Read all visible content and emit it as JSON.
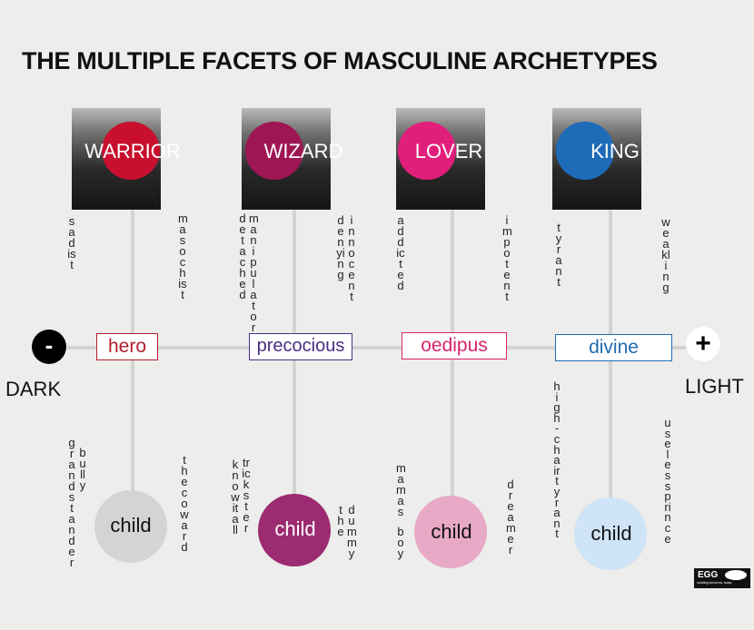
{
  "title": "THE MULTIPLE FACETS OF MASCULINE ARCHETYPES",
  "poles": {
    "dark": {
      "symbol": "-",
      "label": "DARK"
    },
    "light": {
      "symbol": "+",
      "label": "LIGHT"
    }
  },
  "archetypes": [
    {
      "name": "WARRIOR",
      "color": "#c8102e",
      "left_shadow": [
        "sadist"
      ],
      "right_shadow": [
        "masochist"
      ],
      "mature": "hero",
      "mature_color": "#b01e2c",
      "immature": "child",
      "child_color": "#d4d4d4",
      "child_text_color": "#111111",
      "child_left": [
        "bully",
        "grandstander"
      ],
      "child_right": [
        "the coward"
      ]
    },
    {
      "name": "WIZARD",
      "color": "#9e1654",
      "left_shadow": [
        "manipulator",
        "detached"
      ],
      "right_shadow": [
        "innocent",
        "denying"
      ],
      "mature": "precocious",
      "mature_color": "#4b2e83",
      "immature": "child",
      "child_color": "#9c2b72",
      "child_text_color": "#ffffff",
      "child_left": [
        "trickster",
        "knowitall"
      ],
      "child_right": [
        "dummy",
        "the"
      ]
    },
    {
      "name": "LOVER",
      "color": "#e11f7b",
      "left_shadow": [
        "addicted"
      ],
      "right_shadow": [
        "impotent"
      ],
      "mature": "oedipus",
      "mature_color": "#d6246e",
      "immature": "child",
      "child_color": "#e8a9c6",
      "child_text_color": "#111111",
      "child_left": [
        "mamas",
        "boy"
      ],
      "child_right": [
        "dreamer"
      ]
    },
    {
      "name": "KING",
      "color": "#1e6bb8",
      "left_shadow": [
        "tyrant"
      ],
      "right_shadow": [
        "weakling"
      ],
      "mature": "divine",
      "mature_color": "#1f6cb2",
      "immature": "child",
      "child_color": "#cfe4f6",
      "child_text_color": "#111111",
      "child_left": [
        "high-chairtyrant"
      ],
      "child_right": [
        "uselessprince"
      ]
    }
  ],
  "logo": {
    "name": "EGG",
    "tagline": "creating tomorrow, today"
  }
}
